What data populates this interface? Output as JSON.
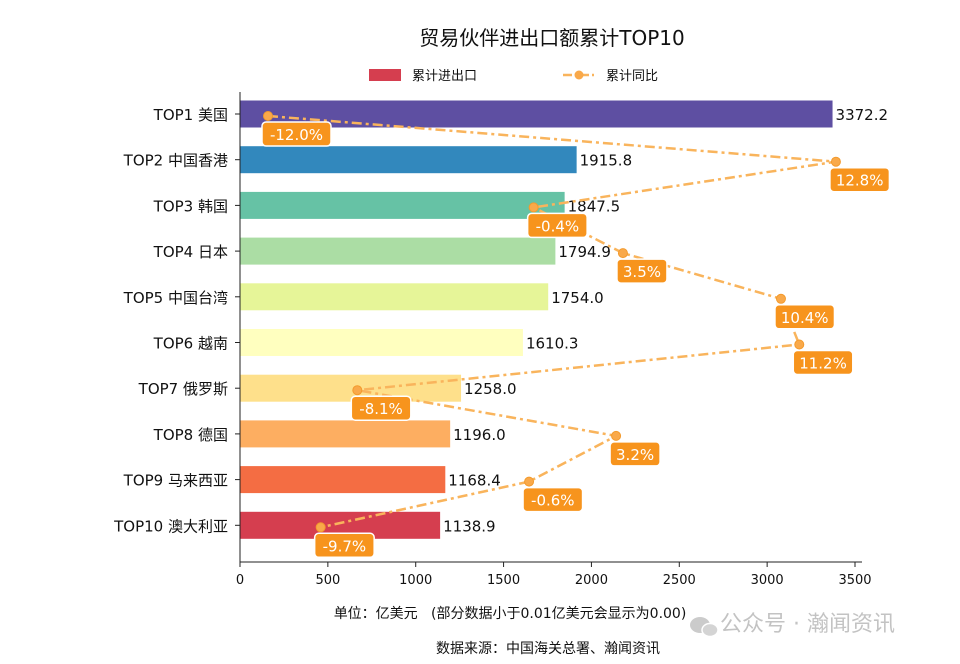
{
  "chart_data": {
    "type": "bar",
    "orientation": "horizontal",
    "title": "贸易伙伴进出口额累计TOP10",
    "categories": [
      "TOP1 美国",
      "TOP2 中国香港",
      "TOP3 韩国",
      "TOP4 日本",
      "TOP5 中国台湾",
      "TOP6 越南",
      "TOP7 俄罗斯",
      "TOP8 德国",
      "TOP9 马来西亚",
      "TOP10 澳大利亚"
    ],
    "series": [
      {
        "name": "累计进出口",
        "type": "bar",
        "values": [
          3372.2,
          1915.8,
          1847.5,
          1794.9,
          1754.0,
          1610.3,
          1258.0,
          1196.0,
          1168.4,
          1138.9
        ],
        "colors": [
          "#5e4fa2",
          "#3288bd",
          "#66c2a5",
          "#abdda4",
          "#e6f598",
          "#ffffbf",
          "#fee08b",
          "#fdae61",
          "#f46d43",
          "#d53e4f"
        ]
      },
      {
        "name": "累计同比",
        "type": "line",
        "unit": "%",
        "values": [
          -12.0,
          12.8,
          -0.4,
          3.5,
          10.4,
          11.2,
          -8.1,
          3.2,
          -0.6,
          -9.7
        ],
        "color": "#f9b45c",
        "label_color": "#f7941d"
      }
    ],
    "value_labels": [
      "3372.2",
      "1915.8",
      "1847.5",
      "1794.9",
      "1754.0",
      "1610.3",
      "1258.0",
      "1196.0",
      "1168.4",
      "1138.9"
    ],
    "line_labels": [
      "-12.0%",
      "12.8%",
      "-0.4%",
      "3.5%",
      "10.4%",
      "11.2%",
      "-8.1%",
      "3.2%",
      "-0.6%",
      "-9.7%"
    ],
    "xlim": [
      0,
      3550
    ],
    "xticks": [
      "0",
      "500",
      "1000",
      "1500",
      "2000",
      "2500",
      "3000",
      "3500"
    ],
    "xlabel": "单位：亿美元   (部分数据小于0.01亿美元会显示为0.00)",
    "legend": [
      "累计进出口",
      "累计同比"
    ],
    "legend_position": "top-center",
    "grid": false
  },
  "source": "数据来源：中国海关总署、瀚闻资讯",
  "watermark": "公众号 · 瀚闻资讯"
}
